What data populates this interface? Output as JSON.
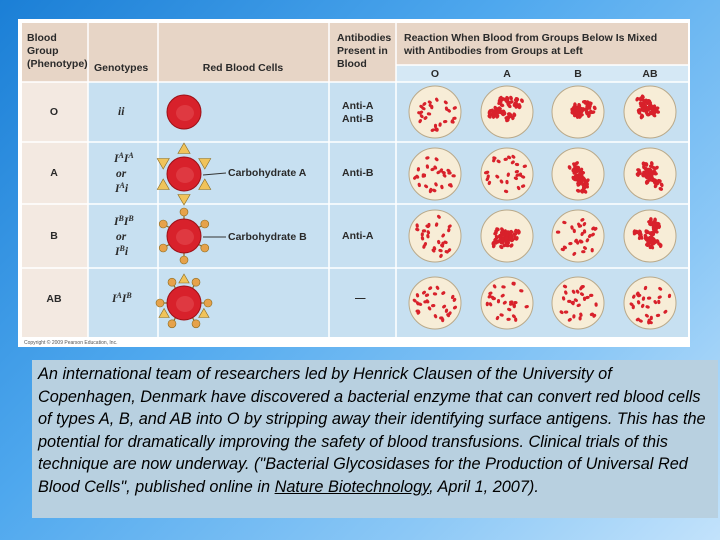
{
  "table": {
    "headers": {
      "group": [
        "Blood",
        "Group",
        "(Phenotype)"
      ],
      "genotypes": "Genotypes",
      "rbc": "Red Blood Cells",
      "antibodies": [
        "Antibodies",
        "Present in",
        "Blood"
      ],
      "reaction": [
        "Reaction When Blood from Groups Below Is Mixed",
        "with Antibodies from Groups at Left"
      ],
      "reaction_cols": [
        "O",
        "A",
        "B",
        "AB"
      ]
    },
    "rows": [
      {
        "group": "O",
        "genotype_lines": [
          "ii"
        ],
        "carbohydrate": "",
        "antibodies": [
          "Anti-A",
          "Anti-B"
        ],
        "reactions": [
          false,
          true,
          true,
          true
        ]
      },
      {
        "group": "A",
        "genotype_lines": [
          "IAIA",
          "or",
          "IAi"
        ],
        "carbohydrate": "Carbohydrate A",
        "antibodies": [
          "Anti-B"
        ],
        "reactions": [
          false,
          false,
          true,
          true
        ]
      },
      {
        "group": "B",
        "genotype_lines": [
          "IBIB",
          "or",
          "IBi"
        ],
        "carbohydrate": "Carbohydrate B",
        "antibodies": [
          "Anti-A"
        ],
        "reactions": [
          false,
          true,
          false,
          true
        ]
      },
      {
        "group": "AB",
        "genotype_lines": [
          "IAIB"
        ],
        "carbohydrate": "",
        "antibodies": [
          "—"
        ],
        "reactions": [
          false,
          false,
          false,
          false
        ]
      }
    ],
    "copyright": "Copyright © 2009 Pearson Education, Inc.",
    "colors": {
      "header_bg": "#e7d5c6",
      "left_bg": "#f3e9e1",
      "body_bg": "#c7e0f1",
      "cell": "#d8212b",
      "dish": "#f7edd7",
      "antigen_a": "#f0c35a",
      "antigen_b": "#e6a24a"
    }
  },
  "caption": {
    "text_before_journal": "An international team of researchers led by Henrick Clausen of the University of Copenhagen, Denmark have discovered a bacterial enzyme that can convert red blood cells of types A, B, and AB into O by stripping away their identifying surface antigens.  This has the potential for dramatically improving the safety of blood transfusions.  Clinical trials of this technique are now underway.  (\"Bacterial Glycosidases for the Production of Universal Red Blood Cells\", published online in ",
    "journal": "Nature Biotechnology",
    "text_after_journal": ", April 1, 2007)."
  }
}
